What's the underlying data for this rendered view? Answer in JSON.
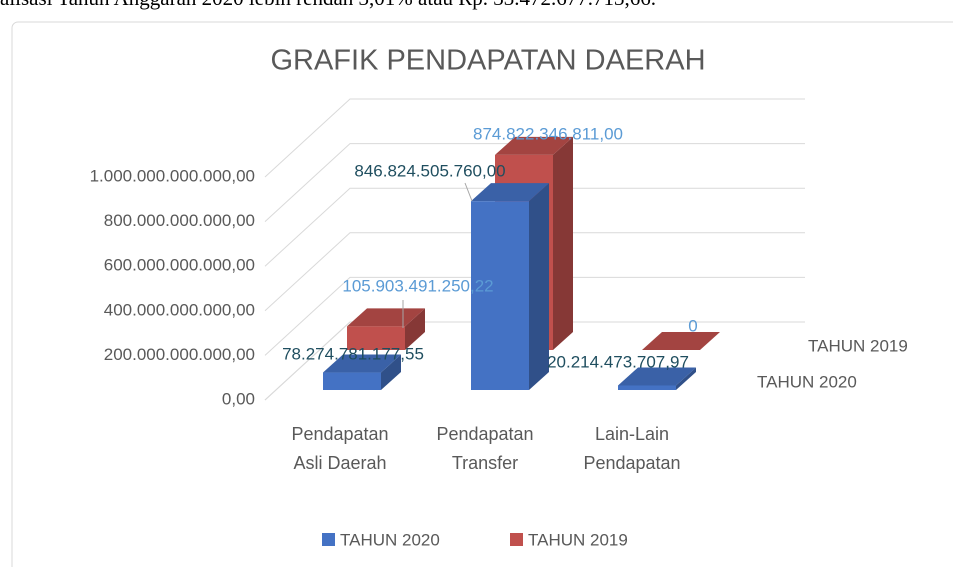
{
  "caption": "alisasi Tahun Anggaran 2020 lebih rendah 3,01% atau Rp. 33.472.677.713,66.",
  "chart_data": {
    "type": "bar3d",
    "title": "GRAFIK PENDAPATAN DAERAH",
    "categories": [
      "Pendapatan Asli Daerah",
      "Pendapatan Transfer",
      "Lain-Lain Pendapatan"
    ],
    "series": [
      {
        "name": "TAHUN 2020",
        "color": "#4472c4",
        "values": [
          78274781177.55,
          846824505760.0,
          20214473707.97
        ],
        "value_labels": [
          "78.274.781.177,55",
          "846.824.505.760,00",
          "20.214.473.707,97"
        ]
      },
      {
        "name": "TAHUN 2019",
        "color": "#c0504d",
        "values": [
          105903491250.22,
          874822346811.0,
          0
        ],
        "value_labels": [
          "105.903.491.250,22",
          "874.822.346.811,00",
          "0"
        ]
      }
    ],
    "ylim": [
      0,
      1000000000000
    ],
    "yticks": [
      {
        "value": 0,
        "label": "0,00"
      },
      {
        "value": 200000000000,
        "label": "200.000.000.000,00"
      },
      {
        "value": 400000000000,
        "label": "400.000.000.000,00"
      },
      {
        "value": 600000000000,
        "label": "600.000.000.000,00"
      },
      {
        "value": 800000000000,
        "label": "800.000.000.000,00"
      },
      {
        "value": 1000000000000,
        "label": "1.000.000.000.000,00"
      }
    ],
    "grid": true,
    "legend": "bottom"
  }
}
